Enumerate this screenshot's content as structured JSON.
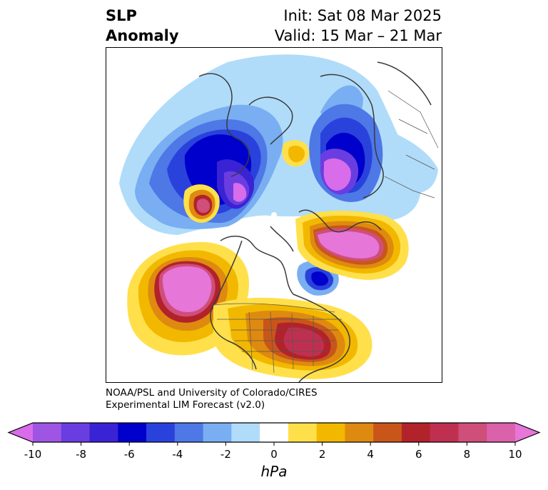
{
  "header": {
    "title_line1": "SLP",
    "title_line2": "Anomaly",
    "init_text": "Init: Sat 08 Mar 2025",
    "valid_text": "Valid: 15 Mar – 21 Mar"
  },
  "credit": {
    "line1": "NOAA/PSL and University of Colorado/CIRES",
    "line2": "Experimental LIM Forecast (v2.0)"
  },
  "colorbar": {
    "label": "hPa",
    "ticks": [
      "-10",
      "-8",
      "-6",
      "-4",
      "-2",
      "0",
      "2",
      "4",
      "6",
      "8",
      "10"
    ],
    "colors": [
      "#d86cea",
      "#9f55e3",
      "#6a3de0",
      "#3a23d4",
      "#0000cc",
      "#2a42dc",
      "#4d78e6",
      "#79aef2",
      "#b0dcfa",
      "#ffffff",
      "#ffe04a",
      "#f2b800",
      "#de8a10",
      "#c8561a",
      "#b2222a",
      "#bf3050",
      "#cf4e7a",
      "#d962aa",
      "#e676d8"
    ],
    "extend": "both"
  },
  "map": {
    "projection": "north-polar-stereographic",
    "features": [
      "coastlines",
      "country-borders",
      "us-state-borders"
    ]
  }
}
